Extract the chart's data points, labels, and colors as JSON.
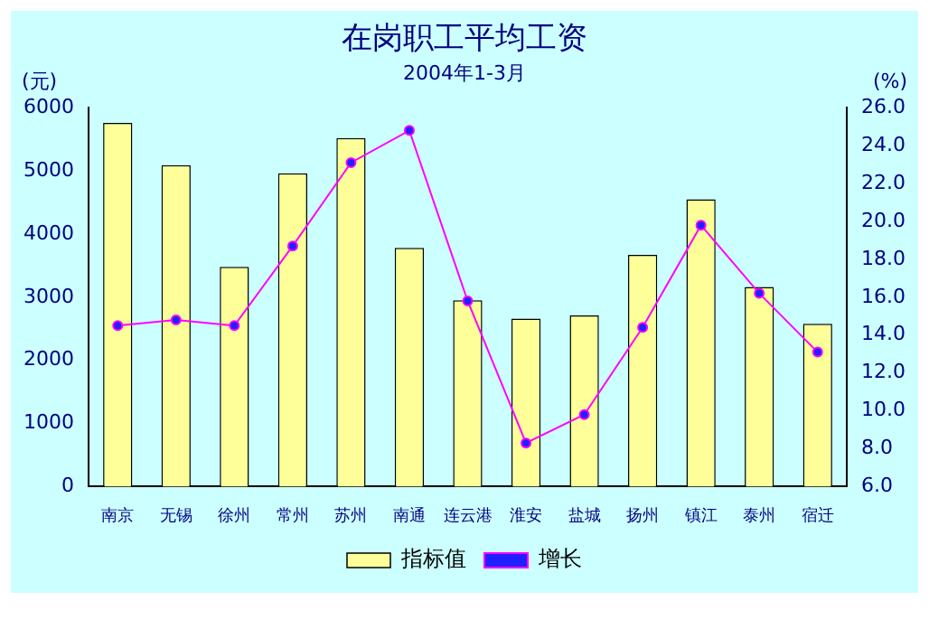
{
  "chart_data": {
    "type": "bar",
    "title": "在岗职工平均工资",
    "subtitle": "2004年1-3月",
    "ylabel": "(元)",
    "y2label": "(%)",
    "categories": [
      "南京",
      "无锡",
      "徐州",
      "常州",
      "苏州",
      "南通",
      "连云港",
      "淮安",
      "盐城",
      "扬州",
      "镇江",
      "泰州",
      "宿迁"
    ],
    "series": [
      {
        "name": "指标值",
        "color": "#ffff99",
        "values": [
          5760,
          5090,
          3480,
          4960,
          5520,
          3780,
          2950,
          2660,
          2710,
          3670,
          4550,
          3160,
          2580
        ]
      },
      {
        "name": "增长",
        "type": "line",
        "axis": "y2",
        "color": "#ff00ff",
        "marker": "circle",
        "values": [
          14.5,
          14.8,
          14.5,
          18.7,
          23.1,
          24.8,
          15.8,
          8.3,
          9.8,
          14.4,
          19.8,
          16.2,
          13.1
        ]
      }
    ],
    "ylim": [
      0,
      6000
    ],
    "yticks": [
      0,
      1000,
      2000,
      3000,
      4000,
      5000,
      6000
    ],
    "y2lim": [
      6,
      26
    ],
    "y2ticks": [
      {
        "value": 6,
        "label": "6.0"
      },
      {
        "value": 8,
        "label": "8.0"
      },
      {
        "value": 10,
        "label": "10.0"
      },
      {
        "value": 12,
        "label": "12.0"
      },
      {
        "value": 14,
        "label": "14.0"
      },
      {
        "value": 16,
        "label": "16.0"
      },
      {
        "value": 18,
        "label": "18.0"
      },
      {
        "value": 20,
        "label": "20.0"
      },
      {
        "value": 22,
        "label": "22.0"
      },
      {
        "value": 24,
        "label": "24.0"
      },
      {
        "value": 26,
        "label": "26.0"
      }
    ],
    "grid": false,
    "legend": "bottom"
  }
}
